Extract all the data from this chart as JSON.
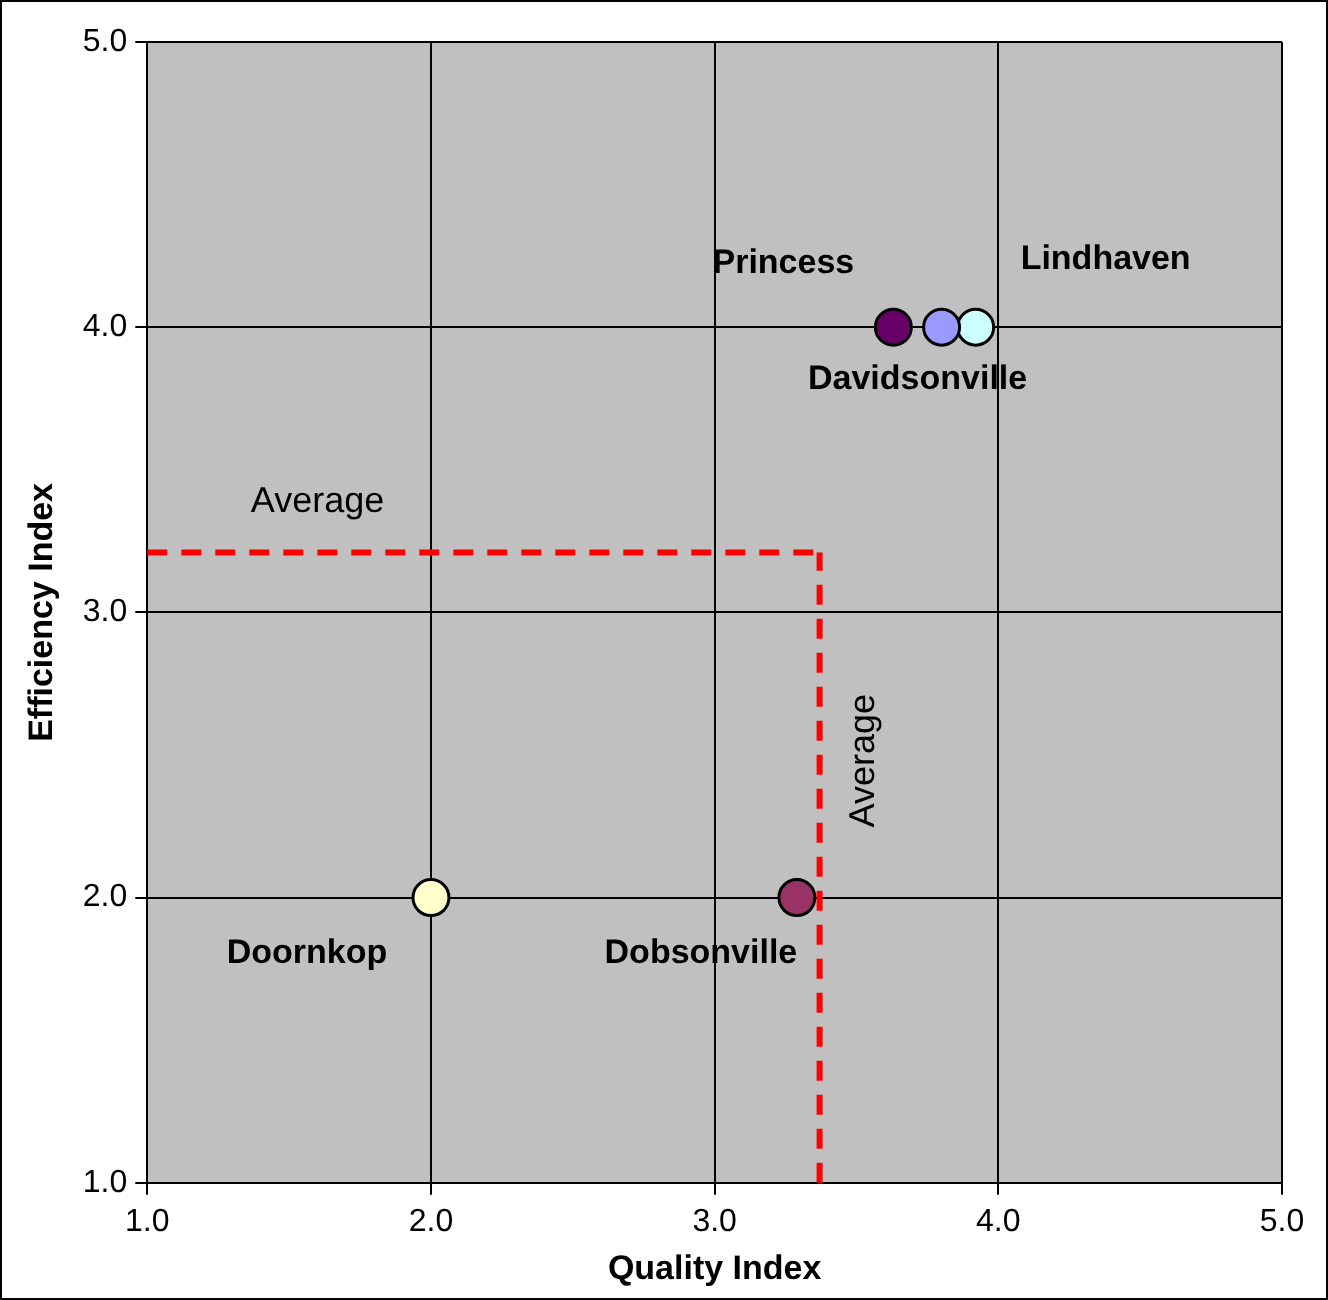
{
  "chart_data": {
    "type": "scatter",
    "xlabel": "Quality Index",
    "ylabel": "Efficiency Index",
    "xlim": [
      1,
      5
    ],
    "ylim": [
      1,
      5
    ],
    "xticks": [
      {
        "value": 1,
        "label": "1.0"
      },
      {
        "value": 2,
        "label": "2.0"
      },
      {
        "value": 3,
        "label": "3.0"
      },
      {
        "value": 4,
        "label": "4.0"
      },
      {
        "value": 5,
        "label": "5.0"
      }
    ],
    "yticks": [
      {
        "value": 1,
        "label": "1.0"
      },
      {
        "value": 2,
        "label": "2.0"
      },
      {
        "value": 3,
        "label": "3.0"
      },
      {
        "value": 4,
        "label": "4.0"
      },
      {
        "value": 5,
        "label": "5.0"
      }
    ],
    "grid": true,
    "legend": false,
    "marker": "circle",
    "series": [
      {
        "name": "Princess",
        "color": "#660066",
        "x": [
          3.63
        ],
        "values": [
          4.0
        ]
      },
      {
        "name": "Davidsonville",
        "color": "#9999ff",
        "x": [
          3.8
        ],
        "values": [
          4.0
        ]
      },
      {
        "name": "Lindhaven",
        "color": "#ccffff",
        "x": [
          3.92
        ],
        "values": [
          4.0
        ]
      },
      {
        "name": "Doornkop",
        "color": "#ffffcc",
        "x": [
          2.0
        ],
        "values": [
          2.0
        ]
      },
      {
        "name": "Dobsonville",
        "color": "#993366",
        "x": [
          3.29
        ],
        "values": [
          2.0
        ]
      }
    ],
    "ref_lines": [
      {
        "axis": "y",
        "value": 3.21,
        "label": "Average",
        "color": "#ff0000",
        "line_style": "dashed"
      },
      {
        "axis": "x",
        "value": 3.37,
        "label": "Average",
        "color": "#ff0000",
        "line_style": "dashed"
      }
    ]
  }
}
